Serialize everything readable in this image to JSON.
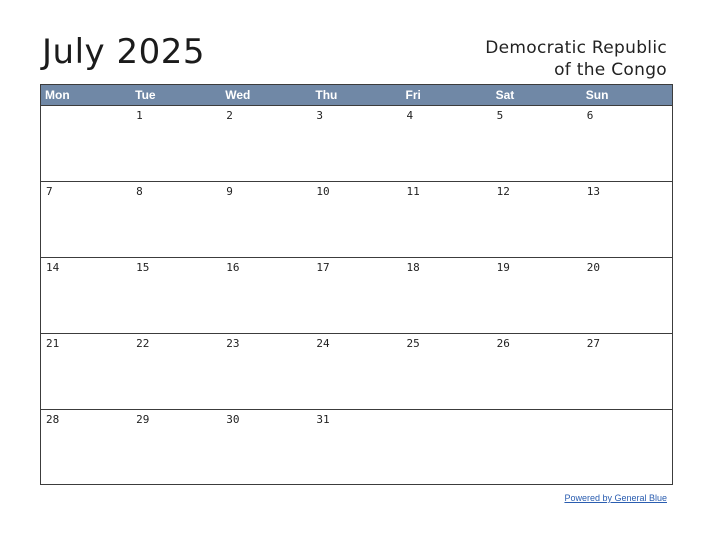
{
  "title": "July 2025",
  "country": {
    "line1": "Democratic Republic",
    "line2": "of the Congo"
  },
  "weekdays": [
    "Mon",
    "Tue",
    "Wed",
    "Thu",
    "Fri",
    "Sat",
    "Sun"
  ],
  "weeks": [
    [
      "",
      "1",
      "2",
      "3",
      "4",
      "5",
      "6"
    ],
    [
      "7",
      "8",
      "9",
      "10",
      "11",
      "12",
      "13"
    ],
    [
      "14",
      "15",
      "16",
      "17",
      "18",
      "19",
      "20"
    ],
    [
      "21",
      "22",
      "23",
      "24",
      "25",
      "26",
      "27"
    ],
    [
      "28",
      "29",
      "30",
      "31",
      "",
      "",
      ""
    ]
  ],
  "footer": {
    "link_text": "Powered by General Blue"
  },
  "colors": {
    "header_bg": "#7088a6",
    "link": "#2a5db0"
  }
}
